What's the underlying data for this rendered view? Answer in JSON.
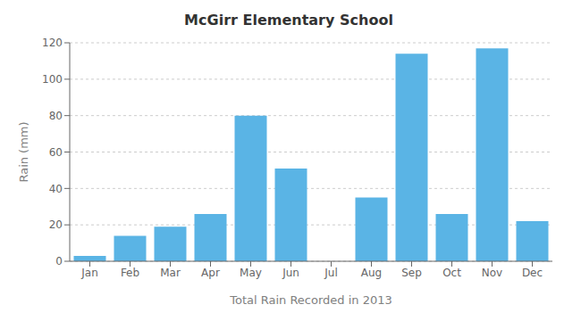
{
  "chart_data": {
    "type": "bar",
    "title": "McGirr Elementary School",
    "xlabel": "Total Rain Recorded in 2013",
    "ylabel": "Rain (mm)",
    "categories": [
      "Jan",
      "Feb",
      "Mar",
      "Apr",
      "May",
      "Jun",
      "Jul",
      "Aug",
      "Sep",
      "Oct",
      "Nov",
      "Dec"
    ],
    "values": [
      3,
      14,
      19,
      26,
      80,
      51,
      0,
      35,
      114,
      26,
      117,
      22
    ],
    "color": "#5ab4e5",
    "ylim": [
      0,
      120
    ],
    "yticks": [
      0,
      20,
      40,
      60,
      80,
      100,
      120
    ],
    "grid": true
  }
}
